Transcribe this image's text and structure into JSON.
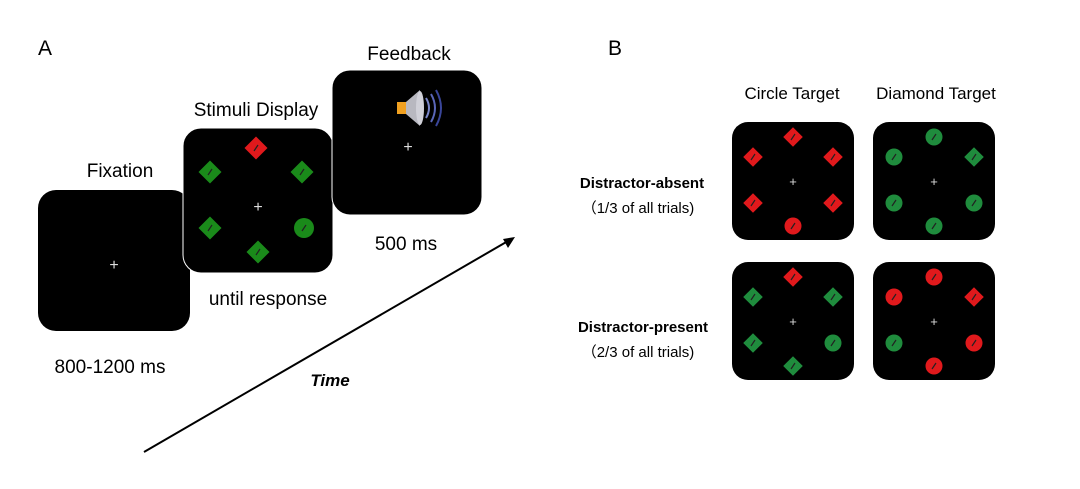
{
  "panel_a": {
    "letter": "A",
    "fixation": {
      "title": "Fixation",
      "duration": "800-1200 ms",
      "fixation_mark": "+"
    },
    "stimuli": {
      "title": "Stimuli Display",
      "duration": "until response",
      "fixation_mark": "+",
      "items": [
        {
          "position": "top",
          "shape": "diamond",
          "color": "red"
        },
        {
          "position": "upper-left",
          "shape": "diamond",
          "color": "green"
        },
        {
          "position": "upper-right",
          "shape": "diamond",
          "color": "green"
        },
        {
          "position": "lower-left",
          "shape": "diamond",
          "color": "green"
        },
        {
          "position": "lower-right",
          "shape": "circle",
          "color": "green"
        },
        {
          "position": "bottom",
          "shape": "diamond",
          "color": "green"
        }
      ]
    },
    "feedback": {
      "title": "Feedback",
      "duration": "500 ms",
      "fixation_mark": "+",
      "icon": "speaker-icon"
    },
    "time_label": "Time"
  },
  "panel_b": {
    "letter": "B",
    "columns": [
      "Circle Target",
      "Diamond Target"
    ],
    "rows": [
      {
        "label": "Distractor-absent",
        "sublabel": "（1/3 of all trials)"
      },
      {
        "label": "Distractor-present",
        "sublabel": "（2/3 of all trials)"
      }
    ],
    "displays": [
      [
        {
          "fixation_mark": "+",
          "items": [
            {
              "position": "top",
              "shape": "diamond",
              "color": "red"
            },
            {
              "position": "upper-left",
              "shape": "diamond",
              "color": "red"
            },
            {
              "position": "upper-right",
              "shape": "diamond",
              "color": "red"
            },
            {
              "position": "lower-left",
              "shape": "diamond",
              "color": "red"
            },
            {
              "position": "lower-right",
              "shape": "diamond",
              "color": "red"
            },
            {
              "position": "bottom",
              "shape": "circle",
              "color": "red"
            }
          ]
        },
        {
          "fixation_mark": "+",
          "items": [
            {
              "position": "top",
              "shape": "circle",
              "color": "green"
            },
            {
              "position": "upper-left",
              "shape": "circle",
              "color": "green"
            },
            {
              "position": "upper-right",
              "shape": "diamond",
              "color": "green"
            },
            {
              "position": "lower-left",
              "shape": "circle",
              "color": "green"
            },
            {
              "position": "lower-right",
              "shape": "circle",
              "color": "green"
            },
            {
              "position": "bottom",
              "shape": "circle",
              "color": "green"
            }
          ]
        }
      ],
      [
        {
          "fixation_mark": "+",
          "items": [
            {
              "position": "top",
              "shape": "diamond",
              "color": "red"
            },
            {
              "position": "upper-left",
              "shape": "diamond",
              "color": "green"
            },
            {
              "position": "upper-right",
              "shape": "diamond",
              "color": "green"
            },
            {
              "position": "lower-left",
              "shape": "diamond",
              "color": "green"
            },
            {
              "position": "lower-right",
              "shape": "circle",
              "color": "green"
            },
            {
              "position": "bottom",
              "shape": "diamond",
              "color": "green"
            }
          ]
        },
        {
          "fixation_mark": "+",
          "items": [
            {
              "position": "top",
              "shape": "circle",
              "color": "red"
            },
            {
              "position": "upper-left",
              "shape": "circle",
              "color": "red"
            },
            {
              "position": "upper-right",
              "shape": "diamond",
              "color": "red"
            },
            {
              "position": "lower-left",
              "shape": "circle",
              "color": "green"
            },
            {
              "position": "lower-right",
              "shape": "circle",
              "color": "red"
            },
            {
              "position": "bottom",
              "shape": "circle",
              "color": "red"
            }
          ]
        }
      ]
    ]
  },
  "colors": {
    "red": "#e0191c",
    "green_a": "#1a8a1a",
    "green_b": "#1f8c3d",
    "screen": "#000000"
  }
}
